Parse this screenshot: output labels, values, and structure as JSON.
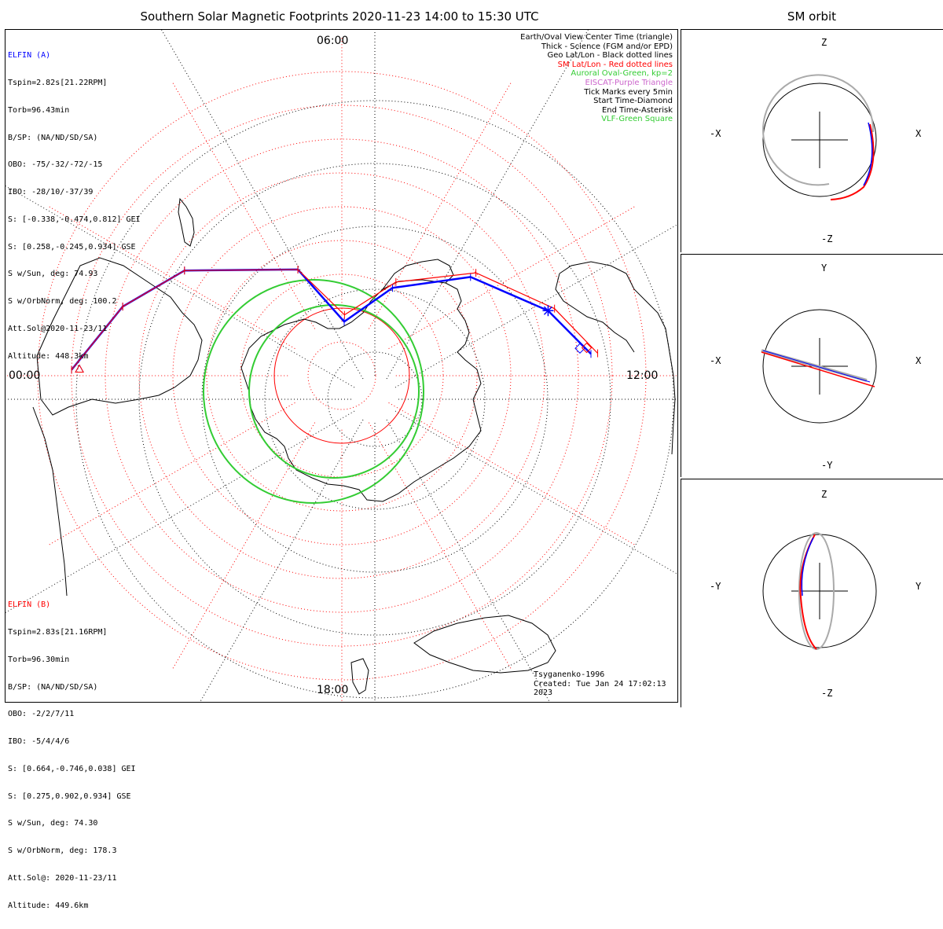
{
  "header": {
    "title": "Southern Solar Magnetic Footprints 2020-11-23 14:00 to 15:30 UTC",
    "orbit_title": "SM orbit"
  },
  "colors": {
    "elfin_a": "#0000ff",
    "elfin_b": "#ff0000",
    "sm_grid": "#ff0000",
    "oval": "#00cc00",
    "geo_grid": "#000000",
    "model": "#aaaaaa"
  },
  "elfin_a": {
    "name": "ELFIN (A)",
    "lines": [
      "Tspin=2.82s[21.22RPM]",
      "Torb=96.43min",
      "B/SP: (NA/ND/SD/SA)",
      "OBO: -75/-32/-72/-15",
      "IBO: -28/10/-37/39",
      "S: [-0.338,-0.474,0.812] GEI",
      "S: [0.258,-0.245,0.934] GSE",
      "S w/Sun, deg: 74.93",
      "S w/OrbNorm, deg: 100.2",
      "Att.Sol@2020-11-23/11",
      "Altitude: 448.3km"
    ]
  },
  "elfin_b": {
    "name": "ELFIN (B)",
    "lines": [
      "Tspin=2.83s[21.16RPM]",
      "Torb=96.30min",
      "B/SP: (NA/ND/SD/SA)",
      "OBO: -2/2/7/11",
      "IBO: -5/4/4/6",
      "S: [0.664,-0.746,0.038] GEI",
      "S: [0.275,0.902,0.934] GSE",
      "S w/Sun, deg: 74.30",
      "S w/OrbNorm, deg: 178.3",
      "Att.Sol@: 2020-11-23/11",
      "Altitude: 449.6km"
    ]
  },
  "legend": {
    "items": [
      {
        "text": "Earth/Oval View Center Time (triangle)",
        "color": "#000000"
      },
      {
        "text": "Thick - Science (FGM and/or EPD)",
        "color": "#000000"
      },
      {
        "text": "Geo Lat/Lon - Black dotted lines",
        "color": "#000000"
      },
      {
        "text": "SM Lat/Lon - Red dotted lines",
        "color": "#ff0000"
      },
      {
        "text": "Auroral Oval-Green, kp=2",
        "color": "#33cc33"
      },
      {
        "text": "EISCAT-Purple Triangle",
        "color": "#cc66cc"
      },
      {
        "text": "Tick Marks every 5min",
        "color": "#000000"
      },
      {
        "text": "Start Time-Diamond",
        "color": "#000000"
      },
      {
        "text": "End Time-Asterisk",
        "color": "#000000"
      },
      {
        "text": "VLF-Green Square",
        "color": "#33cc33"
      }
    ]
  },
  "local_time_labels": {
    "top": "06:00",
    "bottom": "18:00",
    "left": "00:00",
    "right": "12:00"
  },
  "credit": {
    "model": "Tsyganenko-1996",
    "created": "Created: Tue Jan 24 17:02:13 2023"
  },
  "chart_data": [
    {
      "type": "scatter",
      "title": "Southern Solar Magnetic Footprints 2020-11-23 14:00 to 15:30 UTC",
      "xlabel": "",
      "ylabel": "",
      "local_time_labels": [
        "00:00",
        "06:00",
        "12:00",
        "18:00"
      ],
      "magnetic_latitude_circles_deg": [
        -90,
        -85,
        -80,
        -75,
        -70,
        -65,
        -60,
        -55,
        -50,
        -45
      ],
      "auroral_oval_kp": 2,
      "series": [
        {
          "name": "ELFIN (A)",
          "color": "#0000ff",
          "x": [
            "00:05",
            "01:10",
            "02:15",
            "04:30",
            "06:10",
            "08:00",
            "09:30",
            "10:50",
            "11:40"
          ],
          "y": [
            -50,
            -56,
            -62,
            -73,
            -82,
            -75,
            -66,
            -58,
            -53
          ]
        },
        {
          "name": "ELFIN (B)",
          "color": "#ff0000",
          "x": [
            "00:05",
            "01:10",
            "02:15",
            "04:30",
            "06:10",
            "08:00",
            "09:30",
            "10:50",
            "11:40"
          ],
          "y": [
            -50,
            -56,
            -62,
            -73,
            -81,
            -74,
            -65,
            -57,
            -52
          ]
        }
      ]
    },
    {
      "type": "line",
      "title": "SM orbit",
      "panels": [
        {
          "axes": [
            "X",
            "Z"
          ],
          "tick_labels": [
            "-X",
            "X",
            "Z",
            "-Z"
          ]
        },
        {
          "axes": [
            "X",
            "Y"
          ],
          "tick_labels": [
            "-X",
            "X",
            "Y",
            "-Y"
          ]
        },
        {
          "axes": [
            "Y",
            "Z"
          ],
          "tick_labels": [
            "-Y",
            "Y",
            "Z",
            "-Z"
          ]
        }
      ]
    }
  ]
}
